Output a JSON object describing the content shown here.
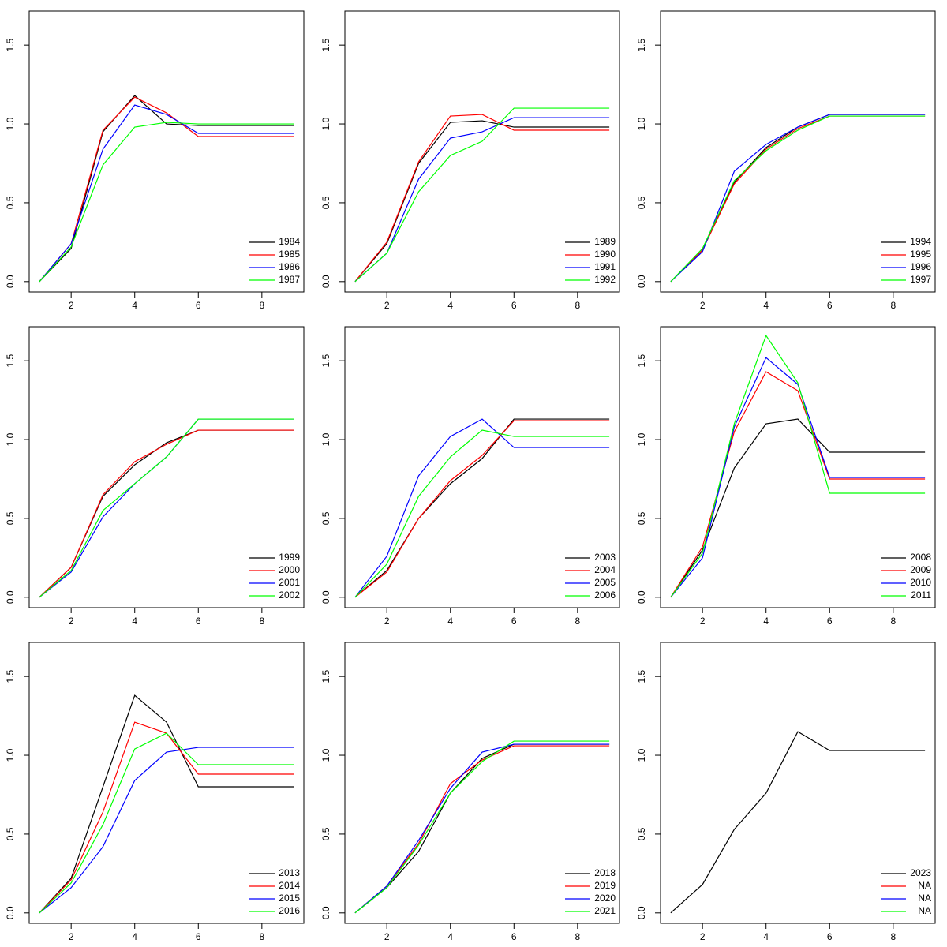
{
  "chart_data": [
    {
      "type": "line",
      "x": [
        1,
        2,
        3,
        4,
        5,
        6,
        7,
        8,
        9
      ],
      "xlim": [
        0.68,
        9.32
      ],
      "ylim": [
        -0.066,
        1.716
      ],
      "xticks": [
        2,
        4,
        6,
        8
      ],
      "yticks": [
        {
          "value": 0,
          "label": "0.0"
        },
        0.5,
        {
          "value": 1,
          "label": "1.0"
        },
        1.5
      ],
      "legend": "bottomright",
      "series": [
        {
          "name": "1984",
          "color": "#000000",
          "values": [
            0,
            0.21,
            0.95,
            1.18,
            1.0,
            0.99,
            0.99,
            0.99,
            0.99
          ]
        },
        {
          "name": "1985",
          "color": "#ff0000",
          "values": [
            0,
            0.24,
            0.96,
            1.17,
            1.07,
            0.92,
            0.92,
            0.92,
            0.92
          ]
        },
        {
          "name": "1986",
          "color": "#0000ff",
          "values": [
            0,
            0.24,
            0.84,
            1.12,
            1.06,
            0.94,
            0.94,
            0.94,
            0.94
          ]
        },
        {
          "name": "1987",
          "color": "#00ff00",
          "values": [
            0,
            0.22,
            0.74,
            0.98,
            1.01,
            1.0,
            1.0,
            1.0,
            1.0
          ]
        }
      ]
    },
    {
      "type": "line",
      "x": [
        1,
        2,
        3,
        4,
        5,
        6,
        7,
        8,
        9
      ],
      "xlim": [
        0.68,
        9.32
      ],
      "ylim": [
        -0.066,
        1.716
      ],
      "xticks": [
        2,
        4,
        6,
        8
      ],
      "yticks": [
        {
          "value": 0,
          "label": "0.0"
        },
        0.5,
        {
          "value": 1,
          "label": "1.0"
        },
        1.5
      ],
      "legend": "bottomright",
      "series": [
        {
          "name": "1989",
          "color": "#000000",
          "values": [
            0,
            0.24,
            0.75,
            1.01,
            1.02,
            0.98,
            0.98,
            0.98,
            0.98
          ]
        },
        {
          "name": "1990",
          "color": "#ff0000",
          "values": [
            0,
            0.25,
            0.76,
            1.05,
            1.06,
            0.96,
            0.96,
            0.96,
            0.96
          ]
        },
        {
          "name": "1991",
          "color": "#0000ff",
          "values": [
            0,
            0.18,
            0.65,
            0.91,
            0.95,
            1.04,
            1.04,
            1.04,
            1.04
          ]
        },
        {
          "name": "1992",
          "color": "#00ff00",
          "values": [
            0,
            0.18,
            0.57,
            0.8,
            0.89,
            1.1,
            1.1,
            1.1,
            1.1
          ]
        }
      ]
    },
    {
      "type": "line",
      "x": [
        1,
        2,
        3,
        4,
        5,
        6,
        7,
        8,
        9
      ],
      "xlim": [
        0.68,
        9.32
      ],
      "ylim": [
        -0.066,
        1.716
      ],
      "xticks": [
        2,
        4,
        6,
        8
      ],
      "yticks": [
        {
          "value": 0,
          "label": "0.0"
        },
        0.5,
        {
          "value": 1,
          "label": "1.0"
        },
        1.5
      ],
      "legend": "bottomright",
      "series": [
        {
          "name": "1994",
          "color": "#000000",
          "values": [
            0,
            0.2,
            0.63,
            0.85,
            0.98,
            1.06,
            1.06,
            1.06,
            1.06
          ]
        },
        {
          "name": "1995",
          "color": "#ff0000",
          "values": [
            0,
            0.2,
            0.62,
            0.84,
            0.97,
            1.05,
            1.05,
            1.05,
            1.05
          ]
        },
        {
          "name": "1996",
          "color": "#0000ff",
          "values": [
            0,
            0.19,
            0.7,
            0.87,
            0.98,
            1.06,
            1.06,
            1.06,
            1.06
          ]
        },
        {
          "name": "1997",
          "color": "#00ff00",
          "values": [
            0,
            0.21,
            0.64,
            0.83,
            0.96,
            1.05,
            1.05,
            1.05,
            1.05
          ]
        }
      ]
    },
    {
      "type": "line",
      "x": [
        1,
        2,
        3,
        4,
        5,
        6,
        7,
        8,
        9
      ],
      "xlim": [
        0.68,
        9.32
      ],
      "ylim": [
        -0.066,
        1.716
      ],
      "xticks": [
        2,
        4,
        6,
        8
      ],
      "yticks": [
        {
          "value": 0,
          "label": "0.0"
        },
        0.5,
        {
          "value": 1,
          "label": "1.0"
        },
        1.5
      ],
      "legend": "bottomright",
      "series": [
        {
          "name": "1999",
          "color": "#000000",
          "values": [
            0,
            0.19,
            0.64,
            0.84,
            0.98,
            1.06,
            1.06,
            1.06,
            1.06
          ]
        },
        {
          "name": "2000",
          "color": "#ff0000",
          "values": [
            0,
            0.19,
            0.65,
            0.86,
            0.97,
            1.06,
            1.06,
            1.06,
            1.06
          ]
        },
        {
          "name": "2001",
          "color": "#0000ff",
          "values": [
            0,
            0.16,
            0.51,
            0.72,
            0.89,
            1.13,
            1.13,
            1.13,
            1.13
          ]
        },
        {
          "name": "2002",
          "color": "#00ff00",
          "values": [
            0,
            0.17,
            0.55,
            0.72,
            0.89,
            1.13,
            1.13,
            1.13,
            1.13
          ]
        }
      ]
    },
    {
      "type": "line",
      "x": [
        1,
        2,
        3,
        4,
        5,
        6,
        7,
        8,
        9
      ],
      "xlim": [
        0.68,
        9.32
      ],
      "ylim": [
        -0.066,
        1.716
      ],
      "xticks": [
        2,
        4,
        6,
        8
      ],
      "yticks": [
        {
          "value": 0,
          "label": "0.0"
        },
        0.5,
        {
          "value": 1,
          "label": "1.0"
        },
        1.5
      ],
      "legend": "bottomright",
      "series": [
        {
          "name": "2003",
          "color": "#000000",
          "values": [
            0,
            0.17,
            0.5,
            0.72,
            0.88,
            1.13,
            1.13,
            1.13,
            1.13
          ]
        },
        {
          "name": "2004",
          "color": "#ff0000",
          "values": [
            0,
            0.16,
            0.5,
            0.74,
            0.9,
            1.12,
            1.12,
            1.12,
            1.12
          ]
        },
        {
          "name": "2005",
          "color": "#0000ff",
          "values": [
            0,
            0.26,
            0.77,
            1.02,
            1.13,
            0.95,
            0.95,
            0.95,
            0.95
          ]
        },
        {
          "name": "2006",
          "color": "#00ff00",
          "values": [
            0,
            0.21,
            0.64,
            0.89,
            1.06,
            1.02,
            1.02,
            1.02,
            1.02
          ]
        }
      ]
    },
    {
      "type": "line",
      "x": [
        1,
        2,
        3,
        4,
        5,
        6,
        7,
        8,
        9
      ],
      "xlim": [
        0.68,
        9.32
      ],
      "ylim": [
        -0.066,
        1.716
      ],
      "xticks": [
        2,
        4,
        6,
        8
      ],
      "yticks": [
        {
          "value": 0,
          "label": "0.0"
        },
        0.5,
        {
          "value": 1,
          "label": "1.0"
        },
        1.5
      ],
      "legend": "bottomright",
      "series": [
        {
          "name": "2008",
          "color": "#000000",
          "values": [
            0,
            0.3,
            0.82,
            1.1,
            1.13,
            0.92,
            0.92,
            0.92,
            0.92
          ]
        },
        {
          "name": "2009",
          "color": "#ff0000",
          "values": [
            0,
            0.32,
            1.05,
            1.43,
            1.31,
            0.75,
            0.75,
            0.75,
            0.75
          ]
        },
        {
          "name": "2010",
          "color": "#0000ff",
          "values": [
            0,
            0.25,
            1.08,
            1.52,
            1.35,
            0.76,
            0.76,
            0.76,
            0.76
          ]
        },
        {
          "name": "2011",
          "color": "#00ff00",
          "values": [
            0,
            0.28,
            1.1,
            1.66,
            1.36,
            0.66,
            0.66,
            0.66,
            0.66
          ]
        }
      ]
    },
    {
      "type": "line",
      "x": [
        1,
        2,
        3,
        4,
        5,
        6,
        7,
        8,
        9
      ],
      "xlim": [
        0.68,
        9.32
      ],
      "ylim": [
        -0.066,
        1.716
      ],
      "xticks": [
        2,
        4,
        6,
        8
      ],
      "yticks": [
        {
          "value": 0,
          "label": "0.0"
        },
        0.5,
        {
          "value": 1,
          "label": "1.0"
        },
        1.5
      ],
      "legend": "bottomright",
      "series": [
        {
          "name": "2013",
          "color": "#000000",
          "values": [
            0,
            0.22,
            0.8,
            1.38,
            1.21,
            0.8,
            0.8,
            0.8,
            0.8
          ]
        },
        {
          "name": "2014",
          "color": "#ff0000",
          "values": [
            0,
            0.21,
            0.64,
            1.21,
            1.14,
            0.88,
            0.88,
            0.88,
            0.88
          ]
        },
        {
          "name": "2015",
          "color": "#0000ff",
          "values": [
            0,
            0.16,
            0.42,
            0.84,
            1.02,
            1.05,
            1.05,
            1.05,
            1.05
          ]
        },
        {
          "name": "2016",
          "color": "#00ff00",
          "values": [
            0,
            0.19,
            0.56,
            1.04,
            1.14,
            0.94,
            0.94,
            0.94,
            0.94
          ]
        }
      ]
    },
    {
      "type": "line",
      "x": [
        1,
        2,
        3,
        4,
        5,
        6,
        7,
        8,
        9
      ],
      "xlim": [
        0.68,
        9.32
      ],
      "ylim": [
        -0.066,
        1.716
      ],
      "xticks": [
        2,
        4,
        6,
        8
      ],
      "yticks": [
        {
          "value": 0,
          "label": "0.0"
        },
        0.5,
        {
          "value": 1,
          "label": "1.0"
        },
        1.5
      ],
      "legend": "bottomright",
      "series": [
        {
          "name": "2018",
          "color": "#000000",
          "values": [
            0,
            0.16,
            0.39,
            0.76,
            0.98,
            1.07,
            1.07,
            1.07,
            1.07
          ]
        },
        {
          "name": "2019",
          "color": "#ff0000",
          "values": [
            0,
            0.17,
            0.44,
            0.82,
            0.97,
            1.06,
            1.06,
            1.06,
            1.06
          ]
        },
        {
          "name": "2020",
          "color": "#0000ff",
          "values": [
            0,
            0.17,
            0.46,
            0.79,
            1.02,
            1.07,
            1.07,
            1.07,
            1.07
          ]
        },
        {
          "name": "2021",
          "color": "#00ff00",
          "values": [
            0,
            0.16,
            0.43,
            0.76,
            0.96,
            1.09,
            1.09,
            1.09,
            1.09
          ]
        }
      ]
    },
    {
      "type": "line",
      "x": [
        1,
        2,
        3,
        4,
        5,
        6,
        7,
        8,
        9
      ],
      "xlim": [
        0.68,
        9.32
      ],
      "ylim": [
        -0.066,
        1.716
      ],
      "xticks": [
        2,
        4,
        6,
        8
      ],
      "yticks": [
        {
          "value": 0,
          "label": "0.0"
        },
        0.5,
        {
          "value": 1,
          "label": "1.0"
        },
        1.5
      ],
      "legend": "bottomright",
      "series": [
        {
          "name": "2023",
          "color": "#000000",
          "values": [
            0,
            0.18,
            0.53,
            0.76,
            1.15,
            1.03,
            1.03,
            1.03,
            1.03
          ]
        },
        {
          "name": "NA",
          "color": "#ff0000",
          "values": [
            null,
            null,
            null,
            null,
            null,
            null,
            null,
            null,
            null
          ]
        },
        {
          "name": "NA",
          "color": "#0000ff",
          "values": [
            null,
            null,
            null,
            null,
            null,
            null,
            null,
            null,
            null
          ]
        },
        {
          "name": "NA",
          "color": "#00ff00",
          "values": [
            null,
            null,
            null,
            null,
            null,
            null,
            null,
            null,
            null
          ]
        }
      ]
    }
  ]
}
